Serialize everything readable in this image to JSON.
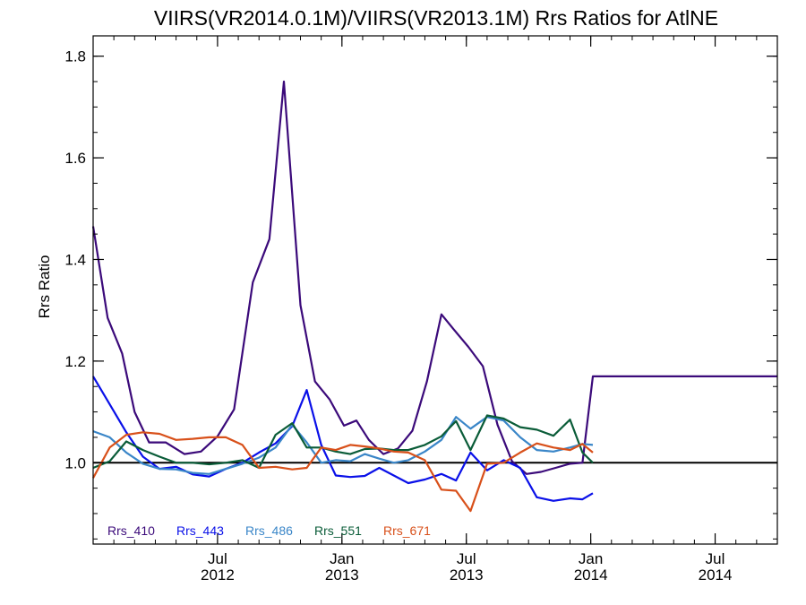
{
  "chart_data": {
    "type": "line",
    "title": "VIIRS(VR2014.0.1M)/VIIRS(VR2013.1M)  Rrs Ratios for AtlNE",
    "xlabel": "",
    "ylabel": "Rrs Ratio",
    "x_start": "2012-01",
    "x": [
      "2012-01",
      "2012-02",
      "2012-03",
      "2012-04",
      "2012-05",
      "2012-06",
      "2012-07",
      "2012-08",
      "2012-09",
      "2012-10",
      "2012-11",
      "2012-12",
      "2013-01",
      "2013-02",
      "2013-03",
      "2013-04",
      "2013-05",
      "2013-06",
      "2013-07",
      "2013-08",
      "2013-09",
      "2013-10",
      "2013-11",
      "2013-12",
      "2014-01",
      "2014-02",
      "2014-03",
      "2014-04",
      "2014-05",
      "2014-06",
      "2014-07",
      "2014-08",
      "2014-09",
      "2014-10"
    ],
    "xlim_months": [
      0,
      33
    ],
    "ylim": [
      0.84,
      1.84
    ],
    "y_ticks": [
      {
        "value": 1.0,
        "label": "1.0"
      },
      {
        "value": 1.2,
        "label": "1.2"
      },
      {
        "value": 1.4,
        "label": "1.4"
      },
      {
        "value": 1.6,
        "label": "1.6"
      },
      {
        "value": 1.8,
        "label": "1.8"
      }
    ],
    "y_minor_step": 0.05,
    "x_ticks": [
      {
        "month_index": 6,
        "line1": "Jul",
        "line2": "2012"
      },
      {
        "month_index": 12,
        "line1": "Jan",
        "line2": "2013"
      },
      {
        "month_index": 18,
        "line1": "Jul",
        "line2": "2013"
      },
      {
        "month_index": 24,
        "line1": "Jan",
        "line2": "2014"
      },
      {
        "month_index": 30,
        "line1": "Jul",
        "line2": "2014"
      }
    ],
    "reference_line": 1.0,
    "legend_position": "bottom-left",
    "series": [
      {
        "name": "Rrs_410",
        "color": "#3b0a7a",
        "x": [
          0,
          0.7,
          1.4,
          2,
          2.7,
          3.5,
          4.4,
          5.2,
          6,
          6.8,
          7.7,
          8.5,
          9.2,
          10,
          10.7,
          11.4,
          12.1,
          12.7,
          13.3,
          14,
          14.7,
          15.4,
          16.1,
          16.8,
          17.4,
          18.1,
          18.8,
          19.5,
          20.2,
          20.9,
          21.6,
          22.3,
          23,
          23.6,
          24.1,
          24.7,
          25.4,
          26,
          26.6,
          27.2,
          27.8,
          28.5,
          29.2,
          29.8,
          30.5,
          31.2,
          31.9,
          32.4,
          33
        ],
        "values": [
          1.465,
          1.285,
          1.215,
          1.1,
          1.04,
          1.04,
          1.017,
          1.022,
          1.052,
          1.105,
          1.355,
          1.44,
          1.75,
          1.31,
          1.16,
          1.125,
          1.073,
          1.083,
          1.045,
          1.017,
          1.028,
          1.063,
          1.16,
          1.292,
          1.262,
          1.228,
          1.19,
          1.075,
          1.003,
          0.978,
          0.982,
          0.99,
          0.998,
          1.0,
          1.17,
          1.17,
          1.17,
          1.17,
          1.17,
          1.17,
          1.17,
          1.17,
          1.17,
          1.17,
          1.17,
          1.17,
          1.17,
          1.17,
          1.17
        ]
      },
      {
        "name": "Rrs_443",
        "color": "#0a10e8",
        "x": [
          0,
          0.8,
          1.6,
          2.4,
          3.2,
          4,
          4.8,
          5.6,
          6.4,
          7.2,
          8,
          8.8,
          9.6,
          10.3,
          11,
          11.7,
          12.4,
          13.1,
          13.8,
          14.5,
          15.2,
          16,
          16.8,
          17.5,
          18.2,
          19,
          19.8,
          20.6,
          21.4,
          22.2,
          23,
          23.6,
          24.1
        ],
        "values": [
          1.17,
          1.115,
          1.06,
          1.012,
          0.988,
          0.992,
          0.977,
          0.973,
          0.988,
          1.0,
          1.02,
          1.038,
          1.072,
          1.143,
          1.035,
          0.975,
          0.972,
          0.974,
          0.99,
          0.975,
          0.96,
          0.967,
          0.978,
          0.965,
          1.02,
          0.985,
          1.005,
          0.99,
          0.932,
          0.925,
          0.93,
          0.928,
          0.94
        ]
      },
      {
        "name": "Rrs_486",
        "color": "#3a86c8",
        "x": [
          0,
          0.8,
          1.6,
          2.4,
          3.2,
          4,
          4.8,
          5.6,
          6.4,
          7.2,
          8,
          8.8,
          9.6,
          10.3,
          11,
          11.7,
          12.4,
          13.1,
          13.8,
          14.5,
          15.2,
          16,
          16.8,
          17.5,
          18.2,
          19,
          19.8,
          20.6,
          21.4,
          22.2,
          23,
          23.6,
          24.1
        ],
        "values": [
          1.062,
          1.05,
          1.02,
          0.998,
          0.988,
          0.987,
          0.98,
          0.978,
          0.988,
          0.998,
          1.01,
          1.03,
          1.075,
          1.04,
          1.0,
          1.005,
          1.003,
          1.017,
          1.008,
          1.0,
          1.005,
          1.022,
          1.045,
          1.09,
          1.067,
          1.09,
          1.083,
          1.05,
          1.025,
          1.022,
          1.03,
          1.037,
          1.035
        ]
      },
      {
        "name": "Rrs_551",
        "color": "#0a5c38",
        "x": [
          0,
          0.8,
          1.6,
          2.4,
          3.2,
          4,
          4.8,
          5.6,
          6.4,
          7.2,
          8,
          8.8,
          9.6,
          10.3,
          11,
          11.7,
          12.4,
          13.1,
          13.8,
          14.5,
          15.2,
          16,
          16.8,
          17.5,
          18.2,
          19,
          19.8,
          20.6,
          21.4,
          22.2,
          23,
          23.6,
          24.1
        ],
        "values": [
          0.99,
          1.003,
          1.042,
          1.025,
          1.012,
          1.0,
          1.0,
          0.997,
          1.0,
          1.005,
          0.99,
          1.055,
          1.078,
          1.03,
          1.03,
          1.022,
          1.017,
          1.027,
          1.028,
          1.025,
          1.025,
          1.035,
          1.052,
          1.082,
          1.025,
          1.093,
          1.087,
          1.07,
          1.065,
          1.053,
          1.085,
          1.02,
          1.0
        ]
      },
      {
        "name": "Rrs_671",
        "color": "#d8501a",
        "x": [
          0,
          0.8,
          1.6,
          2.4,
          3.2,
          4,
          4.8,
          5.6,
          6.4,
          7.2,
          8,
          8.8,
          9.6,
          10.3,
          11,
          11.7,
          12.4,
          13.1,
          13.8,
          14.5,
          15.2,
          16,
          16.8,
          17.5,
          18.2,
          19,
          19.8,
          20.6,
          21.4,
          22.2,
          23,
          23.6,
          24.1
        ],
        "values": [
          0.97,
          1.03,
          1.055,
          1.06,
          1.057,
          1.045,
          1.047,
          1.05,
          1.05,
          1.035,
          0.99,
          0.992,
          0.987,
          0.99,
          1.03,
          1.025,
          1.035,
          1.032,
          1.028,
          1.022,
          1.02,
          1.005,
          0.947,
          0.945,
          0.905,
          0.998,
          1.0,
          1.02,
          1.038,
          1.03,
          1.025,
          1.037,
          1.02
        ]
      }
    ]
  }
}
